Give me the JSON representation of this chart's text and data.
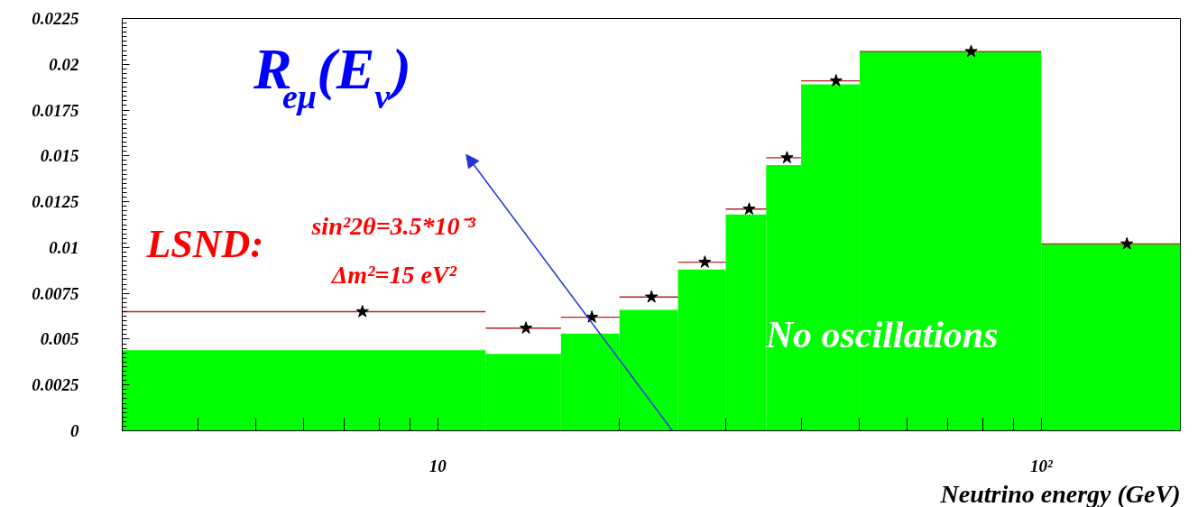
{
  "chart_data": {
    "type": "histogram",
    "xlabel": "Neutrino energy (GeV)",
    "annotations": [
      "R$_{eμ}$(E$_{ν}$)",
      "LSND:",
      "sin²2θ=3.5*10⁻³",
      "Δm²=15 eV²"
    ],
    "bins": [
      3,
      12,
      16,
      20,
      25,
      30,
      35,
      40,
      50,
      100,
      170
    ],
    "series": [
      {
        "name": "No oscillations",
        "color": "#00ff00",
        "values": [
          0.0044,
          0.0042,
          0.0053,
          0.0066,
          0.0088,
          0.0118,
          0.0145,
          0.0189,
          0.0207,
          0.0102
        ]
      },
      {
        "type": "scatter",
        "marker": "star",
        "color": "#000000",
        "x": [
          7.5,
          14,
          18,
          22.6,
          27.7,
          32.8,
          37.9,
          45.7,
          76.5,
          138.6
        ],
        "values": [
          0.0065,
          0.0056,
          0.0062,
          0.0073,
          0.0092,
          0.0121,
          0.0149,
          0.0191,
          0.0207,
          0.0102
        ],
        "xerrors": [
          [
            3,
            12
          ],
          [
            12,
            16
          ],
          [
            16,
            20
          ],
          [
            20,
            25
          ],
          [
            25,
            30
          ],
          [
            30,
            35
          ],
          [
            35,
            40
          ],
          [
            40,
            50
          ],
          [
            50,
            100
          ],
          [
            100,
            170
          ]
        ]
      }
    ],
    "log": "x",
    "xlim": [
      3,
      170
    ],
    "xticks": [
      {
        "value": 4,
        "label": null
      },
      {
        "value": 5,
        "label": null
      },
      {
        "value": 6,
        "label": null
      },
      {
        "value": 7,
        "label": null
      },
      {
        "value": 8,
        "label": null
      },
      {
        "value": 9,
        "label": null
      },
      {
        "value": 10,
        "label": "10"
      },
      {
        "value": 20,
        "label": null
      },
      {
        "value": 30,
        "label": null
      },
      {
        "value": 40,
        "label": null
      },
      {
        "value": 50,
        "label": null
      },
      {
        "value": 60,
        "label": null
      },
      {
        "value": 70,
        "label": null
      },
      {
        "value": 80,
        "label": null
      },
      {
        "value": 90,
        "label": null
      },
      {
        "value": 100,
        "label": "10²"
      }
    ],
    "ylim": [
      0,
      0.0225
    ],
    "yticks": [
      0,
      0.0025,
      0.005,
      0.0075,
      0.01,
      0.0125,
      0.015,
      0.0175,
      0.02,
      0.0225
    ],
    "grid": false
  }
}
